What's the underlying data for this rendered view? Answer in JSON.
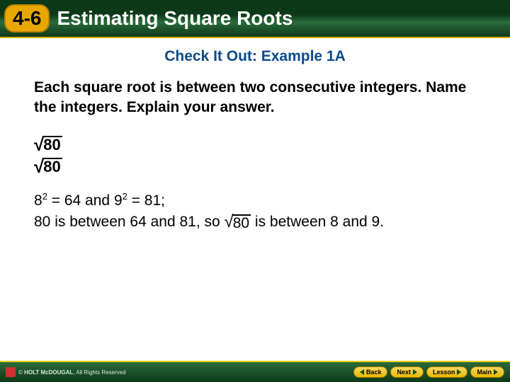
{
  "header": {
    "chapter": "4-6",
    "title": "Estimating Square Roots"
  },
  "subtitle": "Check It Out: Example 1A",
  "instruction": "Each square root is between two consecutive integers. Name the integers. Explain your answer.",
  "problem": {
    "radicand1": "80",
    "radicand2": "80"
  },
  "solution": {
    "base1": "8",
    "exp1": "2",
    "sq1": "64",
    "base2": "9",
    "exp2": "2",
    "sq2": "81",
    "line1_mid": " = ",
    "line1_and": " and ",
    "line1_end": ";",
    "line2_a": "80 is between 64 and 81, so",
    "line2_rad": "80",
    "line2_b": " is between 8 and 9."
  },
  "footer": {
    "brand": "HOLT McDOUGAL",
    "copyright": ", All Rights Reserved",
    "back": "Back",
    "next": "Next",
    "lesson": "Lesson",
    "main": "Main"
  }
}
